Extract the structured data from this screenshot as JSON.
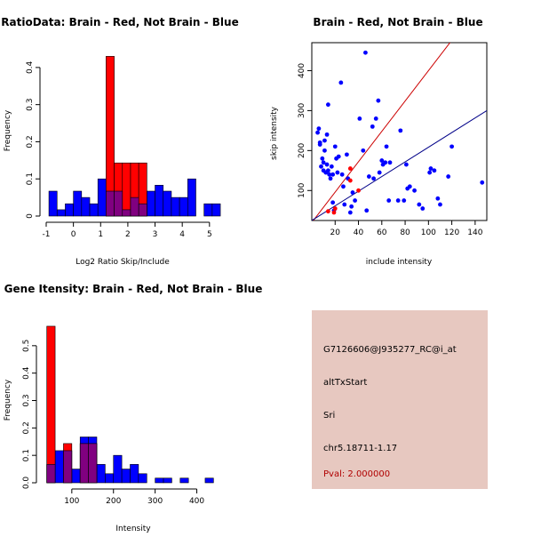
{
  "colors": {
    "red": "#ff0000",
    "blue": "#0000ff",
    "overlap": "#800080",
    "panel_bg": "#e7c8c0",
    "pval": "#b00000",
    "blue_line": "#000088",
    "red_line": "#cc0000"
  },
  "chart_data": [
    {
      "id": "ratio",
      "type": "bar",
      "title": "RatioData: Brain - Red, Not Brain - Blue",
      "xlabel": "Log2 Ratio Skip/Include",
      "ylabel": "Frequency",
      "xlim": [
        -1,
        5.3
      ],
      "ylim": [
        0,
        0.45
      ],
      "xticks": [
        "-1",
        "0",
        "1",
        "2",
        "3",
        "4",
        "5"
      ],
      "xtick_values": [
        -1,
        0,
        1,
        2,
        3,
        4,
        5
      ],
      "yticks": [
        "0",
        "0.1",
        "0.2",
        "0.3",
        "0.4"
      ],
      "ytick_values": [
        0,
        0.1,
        0.2,
        0.3,
        0.4
      ],
      "series": [
        {
          "name": "Brain",
          "color": "red",
          "bins": [
            [
              1,
              1.2,
              0
            ],
            [
              1.2,
              1.5,
              0.43
            ],
            [
              1.5,
              1.8,
              0.143
            ],
            [
              1.8,
              2.1,
              0.143
            ],
            [
              2.1,
              2.4,
              0.143
            ],
            [
              2.4,
              2.7,
              0.143
            ]
          ]
        },
        {
          "name": "Not Brain",
          "color": "blue",
          "bins": [
            [
              -0.9,
              -0.6,
              0.067
            ],
            [
              -0.6,
              -0.3,
              0.017
            ],
            [
              -0.3,
              0,
              0.033
            ],
            [
              0,
              0.3,
              0.067
            ],
            [
              0.3,
              0.6,
              0.05
            ],
            [
              0.6,
              0.9,
              0.033
            ],
            [
              0.9,
              1.2,
              0.1
            ],
            [
              1.2,
              1.5,
              0.067
            ],
            [
              1.5,
              1.8,
              0.067
            ],
            [
              1.8,
              2.1,
              0.017
            ],
            [
              2.1,
              2.4,
              0.05
            ],
            [
              2.4,
              2.7,
              0.033
            ],
            [
              2.7,
              3.0,
              0.067
            ],
            [
              3.0,
              3.3,
              0.083
            ],
            [
              3.3,
              3.6,
              0.067
            ],
            [
              3.6,
              3.9,
              0.05
            ],
            [
              3.9,
              4.2,
              0.05
            ],
            [
              4.2,
              4.5,
              0.1
            ],
            [
              4.5,
              4.8,
              0
            ],
            [
              4.8,
              5.1,
              0.033
            ],
            [
              5.1,
              5.4,
              0.033
            ]
          ]
        }
      ]
    },
    {
      "id": "scatter",
      "type": "scatter",
      "title": "Brain - Red, Not Brain - Blue",
      "xlabel": "include intensity",
      "ylabel": "skip intensity",
      "xlim": [
        0,
        150
      ],
      "ylim": [
        25,
        470
      ],
      "xticks": [
        "20",
        "40",
        "60",
        "80",
        "100",
        "120",
        "140"
      ],
      "xtick_values": [
        20,
        40,
        60,
        80,
        100,
        120,
        140
      ],
      "yticks": [
        "100",
        "200",
        "300",
        "400"
      ],
      "ytick_values": [
        100,
        200,
        300,
        400
      ],
      "series": [
        {
          "name": "Brain",
          "color": "red",
          "points": [
            [
              14,
              48
            ],
            [
              19,
              45
            ],
            [
              20,
              55
            ],
            [
              33,
              125
            ],
            [
              33,
              155
            ],
            [
              40,
              100
            ]
          ]
        },
        {
          "name": "Not Brain",
          "color": "blue",
          "points": [
            [
              5,
              245
            ],
            [
              6,
              255
            ],
            [
              7,
              220
            ],
            [
              7,
              215
            ],
            [
              8,
              160
            ],
            [
              9,
              180
            ],
            [
              10,
              150
            ],
            [
              10,
              170
            ],
            [
              11,
              225
            ],
            [
              11,
              200
            ],
            [
              12,
              145
            ],
            [
              13,
              240
            ],
            [
              13,
              165
            ],
            [
              14,
              315
            ],
            [
              14,
              150
            ],
            [
              15,
              140
            ],
            [
              16,
              130
            ],
            [
              17,
              160
            ],
            [
              18,
              140
            ],
            [
              18,
              70
            ],
            [
              19,
              50
            ],
            [
              20,
              210
            ],
            [
              21,
              180
            ],
            [
              22,
              145
            ],
            [
              23,
              185
            ],
            [
              25,
              370
            ],
            [
              26,
              140
            ],
            [
              27,
              110
            ],
            [
              28,
              65
            ],
            [
              30,
              190
            ],
            [
              31,
              130
            ],
            [
              33,
              45
            ],
            [
              34,
              60
            ],
            [
              35,
              95
            ],
            [
              37,
              75
            ],
            [
              41,
              280
            ],
            [
              44,
              200
            ],
            [
              46,
              445
            ],
            [
              47,
              50
            ],
            [
              49,
              135
            ],
            [
              52,
              260
            ],
            [
              53,
              130
            ],
            [
              55,
              280
            ],
            [
              57,
              325
            ],
            [
              58,
              145
            ],
            [
              60,
              175
            ],
            [
              61,
              165
            ],
            [
              63,
              170
            ],
            [
              64,
              210
            ],
            [
              66,
              75
            ],
            [
              67,
              170
            ],
            [
              74,
              75
            ],
            [
              76,
              250
            ],
            [
              79,
              75
            ],
            [
              81,
              165
            ],
            [
              82,
              105
            ],
            [
              84,
              110
            ],
            [
              88,
              100
            ],
            [
              92,
              65
            ],
            [
              95,
              55
            ],
            [
              101,
              145
            ],
            [
              102,
              155
            ],
            [
              105,
              150
            ],
            [
              108,
              80
            ],
            [
              110,
              65
            ],
            [
              117,
              135
            ],
            [
              120,
              210
            ],
            [
              146,
              120
            ]
          ]
        }
      ],
      "lines": [
        {
          "name": "red-line",
          "color": "red_line",
          "from": [
            0,
            20
          ],
          "to": [
            150,
            590
          ]
        },
        {
          "name": "blue-line",
          "color": "blue_line",
          "from": [
            0,
            25
          ],
          "to": [
            150,
            300
          ]
        }
      ]
    },
    {
      "id": "gene",
      "type": "bar",
      "title": "Gene Itensity: Brain - Red, Not Brain - Blue",
      "xlabel": "Intensity",
      "ylabel": "Frequency",
      "xlim": [
        30,
        450
      ],
      "ylim": [
        0,
        0.6
      ],
      "xticks": [
        "100",
        "200",
        "300",
        "400"
      ],
      "xtick_values": [
        100,
        200,
        300,
        400
      ],
      "yticks": [
        "0.0",
        "0.1",
        "0.2",
        "0.3",
        "0.4",
        "0.5"
      ],
      "ytick_values": [
        0,
        0.1,
        0.2,
        0.3,
        0.4,
        0.5
      ],
      "series": [
        {
          "name": "Brain",
          "color": "red",
          "bins": [
            [
              40,
              60,
              0.571
            ],
            [
              60,
              80,
              0
            ],
            [
              80,
              100,
              0.143
            ],
            [
              100,
              120,
              0
            ],
            [
              120,
              140,
              0.143
            ],
            [
              140,
              160,
              0.143
            ]
          ]
        },
        {
          "name": "Not Brain",
          "color": "blue",
          "bins": [
            [
              40,
              60,
              0.067
            ],
            [
              60,
              80,
              0.117
            ],
            [
              80,
              100,
              0.117
            ],
            [
              100,
              120,
              0.05
            ],
            [
              120,
              140,
              0.167
            ],
            [
              140,
              160,
              0.167
            ],
            [
              160,
              180,
              0.067
            ],
            [
              180,
              200,
              0.033
            ],
            [
              200,
              220,
              0.1
            ],
            [
              220,
              240,
              0.05
            ],
            [
              240,
              260,
              0.067
            ],
            [
              260,
              280,
              0.033
            ],
            [
              280,
              300,
              0
            ],
            [
              300,
              320,
              0.017
            ],
            [
              320,
              340,
              0.017
            ],
            [
              340,
              360,
              0
            ],
            [
              360,
              380,
              0.017
            ],
            [
              380,
              400,
              0
            ],
            [
              400,
              420,
              0
            ],
            [
              420,
              440,
              0.017
            ]
          ]
        }
      ]
    }
  ],
  "info_panel": {
    "probe_id": "G7126606@J935277_RC@i_at",
    "event_type": "altTxStart",
    "gene": "Sri",
    "location": "chr5.18711-1.17",
    "pval": "Pval: 2.000000"
  }
}
